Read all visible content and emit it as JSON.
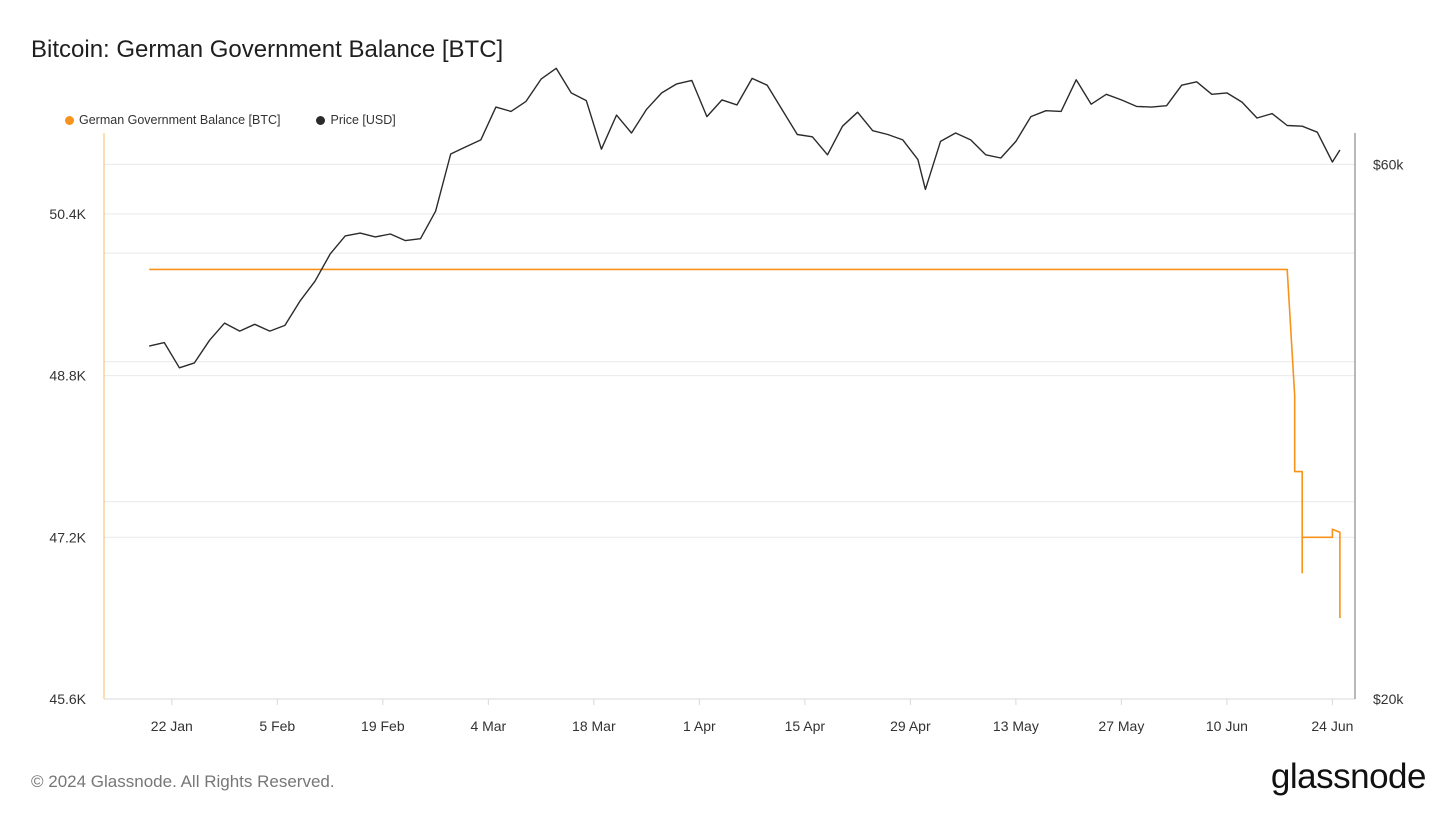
{
  "title": "Bitcoin: German Government Balance [BTC]",
  "legend": {
    "balance_label": "German Government Balance [BTC]",
    "price_label": "Price [USD]"
  },
  "footer": {
    "copyright": "© 2024 Glassnode. All Rights Reserved.",
    "brand": "glassnode"
  },
  "colors": {
    "balance": "#f7931a",
    "price": "#2b2b2b",
    "grid": "#e9e9e9",
    "axis": "#d9d9d9"
  },
  "chart_data": {
    "type": "line",
    "title": "Bitcoin: German Government Balance [BTC]",
    "x_ticks": [
      "22 Jan",
      "5 Feb",
      "19 Feb",
      "4 Mar",
      "18 Mar",
      "1 Apr",
      "15 Apr",
      "29 Apr",
      "13 May",
      "27 May",
      "10 Jun",
      "24 Jun"
    ],
    "y_left": {
      "ticks": [
        "45.6K",
        "47.2K",
        "48.8K",
        "50.4K"
      ],
      "range": [
        45600,
        51200
      ]
    },
    "y_right": {
      "ticks": [
        "$20k",
        "$60k"
      ],
      "range_usd": [
        20000,
        64000
      ],
      "scale": "log"
    },
    "legend_position": "top-left",
    "series": [
      {
        "name": "German Government Balance [BTC]",
        "axis": "left",
        "points": [
          [
            "2024-01-19",
            49850
          ],
          [
            "2024-06-18",
            49850
          ],
          [
            "2024-06-19",
            48600
          ],
          [
            "2024-06-19",
            47850
          ],
          [
            "2024-06-20",
            47850
          ],
          [
            "2024-06-20",
            46850
          ],
          [
            "2024-06-20",
            47200
          ],
          [
            "2024-06-24",
            47200
          ],
          [
            "2024-06-24",
            47280
          ],
          [
            "2024-06-25",
            47250
          ],
          [
            "2024-06-25",
            46400
          ]
        ]
      },
      {
        "name": "Price [USD]",
        "axis": "right",
        "points": [
          [
            "2024-01-19",
            41300
          ],
          [
            "2024-01-21",
            41600
          ],
          [
            "2024-01-23",
            39500
          ],
          [
            "2024-01-25",
            39900
          ],
          [
            "2024-01-27",
            41800
          ],
          [
            "2024-01-29",
            43300
          ],
          [
            "2024-01-31",
            42600
          ],
          [
            "2024-02-02",
            43200
          ],
          [
            "2024-02-04",
            42600
          ],
          [
            "2024-02-06",
            43100
          ],
          [
            "2024-02-08",
            45300
          ],
          [
            "2024-02-10",
            47200
          ],
          [
            "2024-02-12",
            49900
          ],
          [
            "2024-02-14",
            51800
          ],
          [
            "2024-02-16",
            52100
          ],
          [
            "2024-02-18",
            51700
          ],
          [
            "2024-02-20",
            52000
          ],
          [
            "2024-02-22",
            51300
          ],
          [
            "2024-02-24",
            51500
          ],
          [
            "2024-02-26",
            54500
          ],
          [
            "2024-02-28",
            61300
          ],
          [
            "2024-03-01",
            62200
          ],
          [
            "2024-03-03",
            63100
          ],
          [
            "2024-03-05",
            67500
          ],
          [
            "2024-03-07",
            66900
          ],
          [
            "2024-03-09",
            68300
          ],
          [
            "2024-03-11",
            71500
          ],
          [
            "2024-03-13",
            73100
          ],
          [
            "2024-03-15",
            69500
          ],
          [
            "2024-03-17",
            68400
          ],
          [
            "2024-03-19",
            61900
          ],
          [
            "2024-03-21",
            66400
          ],
          [
            "2024-03-23",
            64000
          ],
          [
            "2024-03-25",
            67200
          ],
          [
            "2024-03-27",
            69500
          ],
          [
            "2024-03-29",
            70800
          ],
          [
            "2024-03-31",
            71300
          ],
          [
            "2024-04-02",
            66200
          ],
          [
            "2024-04-04",
            68500
          ],
          [
            "2024-04-06",
            67800
          ],
          [
            "2024-04-08",
            71600
          ],
          [
            "2024-04-10",
            70600
          ],
          [
            "2024-04-12",
            67100
          ],
          [
            "2024-04-14",
            63800
          ],
          [
            "2024-04-16",
            63500
          ],
          [
            "2024-04-18",
            61200
          ],
          [
            "2024-04-20",
            64900
          ],
          [
            "2024-04-22",
            66800
          ],
          [
            "2024-04-24",
            64300
          ],
          [
            "2024-04-26",
            63800
          ],
          [
            "2024-04-28",
            63100
          ],
          [
            "2024-04-30",
            60600
          ],
          [
            "2024-05-01",
            57000
          ],
          [
            "2024-05-03",
            62900
          ],
          [
            "2024-05-05",
            64000
          ],
          [
            "2024-05-07",
            63100
          ],
          [
            "2024-05-09",
            61200
          ],
          [
            "2024-05-11",
            60800
          ],
          [
            "2024-05-13",
            62900
          ],
          [
            "2024-05-15",
            66200
          ],
          [
            "2024-05-17",
            67000
          ],
          [
            "2024-05-19",
            66900
          ],
          [
            "2024-05-21",
            71400
          ],
          [
            "2024-05-23",
            67900
          ],
          [
            "2024-05-25",
            69300
          ],
          [
            "2024-05-27",
            68500
          ],
          [
            "2024-05-29",
            67600
          ],
          [
            "2024-05-31",
            67500
          ],
          [
            "2024-06-02",
            67700
          ],
          [
            "2024-06-04",
            70600
          ],
          [
            "2024-06-06",
            71100
          ],
          [
            "2024-06-08",
            69300
          ],
          [
            "2024-06-10",
            69500
          ],
          [
            "2024-06-12",
            68200
          ],
          [
            "2024-06-14",
            66000
          ],
          [
            "2024-06-16",
            66600
          ],
          [
            "2024-06-18",
            65000
          ],
          [
            "2024-06-20",
            64900
          ],
          [
            "2024-06-22",
            64100
          ],
          [
            "2024-06-24",
            60300
          ],
          [
            "2024-06-25",
            61800
          ]
        ]
      }
    ]
  }
}
